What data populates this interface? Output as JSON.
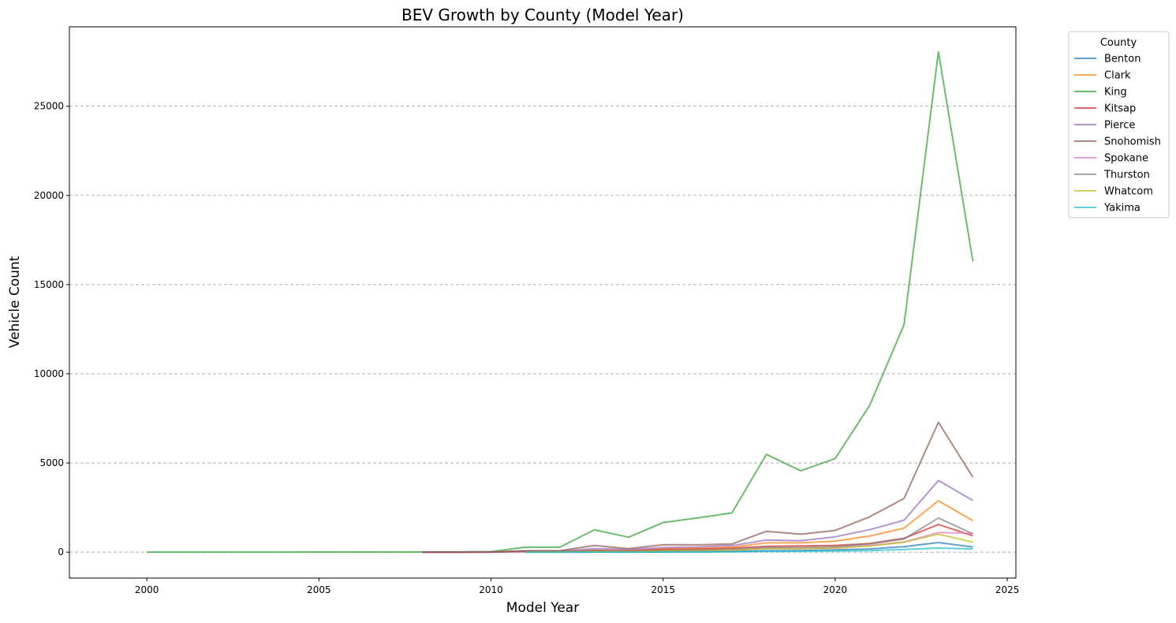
{
  "chart_data": {
    "type": "line",
    "title": "BEV Growth by County (Model Year)",
    "xlabel": "Model Year",
    "ylabel": "Vehicle Count",
    "xlim": [
      1997.75,
      2025.25
    ],
    "ylim": [
      -1450,
      29450
    ],
    "xticks": [
      2000,
      2005,
      2010,
      2015,
      2020,
      2025
    ],
    "yticks": [
      0,
      5000,
      10000,
      15000,
      20000,
      25000
    ],
    "grid": "y dashed",
    "legend_title": "County",
    "legend_position": "outside top-right",
    "series": [
      {
        "name": "Benton",
        "color": "#1f77b4",
        "x": [
          2011,
          2012,
          2013,
          2014,
          2015,
          2016,
          2017,
          2018,
          2019,
          2020,
          2021,
          2022,
          2023,
          2024
        ],
        "y": [
          3,
          3,
          10,
          8,
          15,
          20,
          35,
          80,
          90,
          130,
          180,
          310,
          540,
          290
        ]
      },
      {
        "name": "Clark",
        "color": "#ff7f0e",
        "x": [
          2011,
          2012,
          2013,
          2014,
          2015,
          2016,
          2017,
          2018,
          2019,
          2020,
          2021,
          2022,
          2023,
          2024
        ],
        "y": [
          20,
          20,
          80,
          60,
          180,
          230,
          280,
          520,
          520,
          620,
          900,
          1350,
          2880,
          1770
        ]
      },
      {
        "name": "King",
        "color": "#2ca02c",
        "x": [
          2000,
          2001,
          2002,
          2003,
          2004,
          2005,
          2006,
          2007,
          2008,
          2009,
          2010,
          2011,
          2012,
          2013,
          2014,
          2015,
          2016,
          2017,
          2018,
          2019,
          2020,
          2021,
          2022,
          2023,
          2024
        ],
        "y": [
          5,
          5,
          5,
          5,
          5,
          8,
          8,
          10,
          15,
          15,
          30,
          280,
          280,
          1250,
          840,
          1660,
          1920,
          2200,
          5480,
          4560,
          5250,
          8220,
          12750,
          28050,
          16300
        ]
      },
      {
        "name": "Kitsap",
        "color": "#d62728",
        "x": [
          2008,
          2009,
          2010,
          2011,
          2012,
          2013,
          2014,
          2015,
          2016,
          2017,
          2018,
          2019,
          2020,
          2021,
          2022,
          2023,
          2024
        ],
        "y": [
          2,
          2,
          5,
          30,
          30,
          100,
          80,
          150,
          170,
          220,
          330,
          350,
          380,
          480,
          780,
          1550,
          920
        ]
      },
      {
        "name": "Pierce",
        "color": "#9467bd",
        "x": [
          2008,
          2009,
          2010,
          2011,
          2012,
          2013,
          2014,
          2015,
          2016,
          2017,
          2018,
          2019,
          2020,
          2021,
          2022,
          2023,
          2024
        ],
        "y": [
          2,
          2,
          5,
          60,
          60,
          200,
          150,
          260,
          290,
          370,
          680,
          640,
          860,
          1260,
          1790,
          4020,
          2900
        ]
      },
      {
        "name": "Snohomish",
        "color": "#8c564b",
        "x": [
          2008,
          2009,
          2010,
          2011,
          2012,
          2013,
          2014,
          2015,
          2016,
          2017,
          2018,
          2019,
          2020,
          2021,
          2022,
          2023,
          2024
        ],
        "y": [
          3,
          3,
          8,
          80,
          80,
          370,
          200,
          420,
          410,
          460,
          1170,
          1010,
          1220,
          1980,
          3010,
          7280,
          4200
        ]
      },
      {
        "name": "Spokane",
        "color": "#e377c2",
        "x": [
          2011,
          2012,
          2013,
          2014,
          2015,
          2016,
          2017,
          2018,
          2019,
          2020,
          2021,
          2022,
          2023,
          2024
        ],
        "y": [
          10,
          10,
          40,
          30,
          70,
          90,
          110,
          210,
          200,
          250,
          380,
          570,
          1100,
          1060
        ]
      },
      {
        "name": "Thurston",
        "color": "#7f7f7f",
        "x": [
          2011,
          2012,
          2013,
          2014,
          2015,
          2016,
          2017,
          2018,
          2019,
          2020,
          2021,
          2022,
          2023,
          2024
        ],
        "y": [
          15,
          15,
          60,
          50,
          100,
          120,
          160,
          260,
          260,
          310,
          470,
          740,
          1920,
          1030
        ]
      },
      {
        "name": "Whatcom",
        "color": "#bcbd22",
        "x": [
          2011,
          2012,
          2013,
          2014,
          2015,
          2016,
          2017,
          2018,
          2019,
          2020,
          2021,
          2022,
          2023,
          2024
        ],
        "y": [
          10,
          10,
          40,
          30,
          70,
          80,
          110,
          190,
          200,
          230,
          340,
          560,
          1010,
          560
        ]
      },
      {
        "name": "Yakima",
        "color": "#17becf",
        "x": [
          2011,
          2012,
          2013,
          2014,
          2015,
          2016,
          2017,
          2018,
          2019,
          2020,
          2021,
          2022,
          2023,
          2024
        ],
        "y": [
          2,
          2,
          5,
          5,
          10,
          15,
          20,
          40,
          45,
          60,
          90,
          150,
          230,
          180
        ]
      }
    ]
  }
}
